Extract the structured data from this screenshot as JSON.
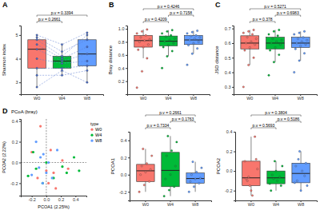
{
  "chart_data": [
    {
      "type": "box",
      "panel": "A",
      "ylabel": "Shannon index",
      "categories": [
        "W0",
        "W4",
        "W8"
      ],
      "colors": [
        "#F8766D",
        "#00BA38",
        "#619CFF"
      ],
      "ylim": [
        2.5,
        5.4
      ],
      "yticks": [
        3,
        4,
        5
      ],
      "line_style": "dashed",
      "boxes": [
        {
          "whislo": 2.8,
          "q1": 3.6,
          "med": 4.4,
          "q3": 4.8,
          "whishi": 5.0
        },
        {
          "whislo": 3.3,
          "q1": 3.6,
          "med": 3.9,
          "q3": 4.1,
          "whishi": 4.6
        },
        {
          "whislo": 3.0,
          "q1": 3.7,
          "med": 4.2,
          "q3": 4.8,
          "whishi": 5.1
        }
      ],
      "points": [
        [
          4.4,
          3.6,
          4.8,
          2.8,
          5.0,
          4.0,
          4.6,
          3.3,
          4.9
        ],
        [
          3.9,
          3.6,
          4.1,
          3.5,
          4.6,
          3.8,
          4.0,
          3.3,
          4.3
        ],
        [
          4.2,
          3.7,
          5.0,
          3.0,
          5.1,
          3.9,
          4.5,
          3.5,
          4.8
        ]
      ],
      "comparisons": [
        {
          "groups": [
            "W0",
            "W4"
          ],
          "label": "p.v = 0.2661"
        },
        {
          "groups": [
            "W0",
            "W8"
          ],
          "label": "p.v = 0.3394"
        }
      ]
    },
    {
      "type": "box",
      "panel": "B",
      "ylabel": "Bray distance",
      "categories": [
        "W0",
        "W4",
        "W8"
      ],
      "colors": [
        "#F8766D",
        "#00BA38",
        "#619CFF"
      ],
      "ylim": [
        0,
        1.05
      ],
      "yticks": [
        0.2,
        0.4,
        0.6,
        0.8,
        {
          "value": 1,
          "label": "1.0"
        }
      ],
      "boxes": [
        {
          "whislo": 0.55,
          "q1": 0.72,
          "med": 0.82,
          "q3": 0.9,
          "whishi": 0.99
        },
        {
          "whislo": 0.58,
          "q1": 0.74,
          "med": 0.81,
          "q3": 0.89,
          "whishi": 0.98
        },
        {
          "whislo": 0.62,
          "q1": 0.76,
          "med": 0.83,
          "q3": 0.9,
          "whishi": 0.97
        }
      ],
      "points": [
        [
          0.1,
          0.35,
          0.55,
          0.68,
          0.72,
          0.76,
          0.8,
          0.82,
          0.84,
          0.87,
          0.9,
          0.93,
          0.96,
          0.99
        ],
        [
          0.4,
          0.58,
          0.66,
          0.72,
          0.75,
          0.78,
          0.81,
          0.83,
          0.85,
          0.88,
          0.9,
          0.93,
          0.96,
          0.98
        ],
        [
          0.45,
          0.62,
          0.7,
          0.75,
          0.78,
          0.8,
          0.83,
          0.85,
          0.87,
          0.89,
          0.9,
          0.93,
          0.95,
          0.97
        ]
      ],
      "comparisons": [
        {
          "groups": [
            "W0",
            "W4"
          ],
          "label": "p.v = 0.4209"
        },
        {
          "groups": [
            "W4",
            "W8"
          ],
          "label": "p.v = 0.7158"
        },
        {
          "groups": [
            "W0",
            "W8"
          ],
          "label": "p.v = 0.4246"
        }
      ]
    },
    {
      "type": "box",
      "panel": "C",
      "ylabel": "JSD distance",
      "categories": [
        "W0",
        "W4",
        "W8"
      ],
      "colors": [
        "#F8766D",
        "#00BA38",
        "#619CFF"
      ],
      "ylim": [
        0.25,
        0.72
      ],
      "yticks": [
        0.3,
        0.4,
        0.5,
        0.6,
        0.7
      ],
      "boxes": [
        {
          "whislo": 0.45,
          "q1": 0.56,
          "med": 0.6,
          "q3": 0.65,
          "whishi": 0.69
        },
        {
          "whislo": 0.47,
          "q1": 0.56,
          "med": 0.6,
          "q3": 0.64,
          "whishi": 0.69
        },
        {
          "whislo": 0.48,
          "q1": 0.57,
          "med": 0.6,
          "q3": 0.64,
          "whishi": 0.68
        }
      ],
      "points": [
        [
          0.3,
          0.45,
          0.5,
          0.55,
          0.57,
          0.59,
          0.6,
          0.61,
          0.63,
          0.64,
          0.66,
          0.67,
          0.68,
          0.69
        ],
        [
          0.38,
          0.47,
          0.52,
          0.55,
          0.57,
          0.59,
          0.6,
          0.61,
          0.62,
          0.63,
          0.65,
          0.66,
          0.68,
          0.69
        ],
        [
          0.4,
          0.48,
          0.53,
          0.56,
          0.58,
          0.59,
          0.6,
          0.61,
          0.62,
          0.63,
          0.64,
          0.66,
          0.67,
          0.68
        ]
      ],
      "comparisons": [
        {
          "groups": [
            "W0",
            "W4"
          ],
          "label": "p.v = 0.378"
        },
        {
          "groups": [
            "W4",
            "W8"
          ],
          "label": "p.v = 0.6983"
        },
        {
          "groups": [
            "W0",
            "W8"
          ],
          "label": "p.v = 0.5271"
        }
      ]
    },
    {
      "type": "scatter",
      "panel": "D",
      "title": "PCoA (bray)",
      "xlabel": "PCOA1 (2.25%)",
      "ylabel": "PCOA2 (2.22%)",
      "legend": "right",
      "legend_title": "type",
      "xlim": [
        -0.35,
        0.55
      ],
      "xticks": [
        -0.2,
        {
          "value": 0,
          "label": "0.0"
        },
        0.2,
        0.4
      ],
      "ylim": [
        -0.32,
        0.42
      ],
      "yticks": [
        -0.2,
        {
          "value": 0,
          "label": "0.0"
        },
        0.2,
        0.4
      ],
      "reference_lines": {
        "x": [
          0
        ],
        "y": [
          0
        ]
      },
      "series": [
        {
          "name": "W0",
          "color": "#F8766D",
          "x": [
            -0.2,
            -0.12,
            -0.08,
            0.0,
            0.03,
            0.06,
            0.1,
            0.13,
            0.22,
            0.3
          ],
          "values": [
            0.1,
            -0.15,
            0.35,
            -0.08,
            -0.2,
            0.12,
            -0.1,
            -0.25,
            0.02,
            -0.06
          ]
        },
        {
          "name": "W4",
          "color": "#00BA38",
          "x": [
            -0.25,
            -0.18,
            -0.14,
            -0.05,
            0.0,
            0.1,
            0.22,
            0.28,
            0.38,
            0.45
          ],
          "values": [
            -0.13,
            0.1,
            -0.06,
            -0.2,
            0.0,
            -0.15,
            -0.04,
            -0.1,
            0.05,
            -0.08
          ]
        },
        {
          "name": "W8",
          "color": "#619CFF",
          "x": [
            -0.2,
            -0.14,
            -0.1,
            -0.08,
            -0.05,
            -0.04,
            0.0,
            0.03,
            0.08,
            0.15
          ],
          "values": [
            -0.12,
            0.2,
            -0.05,
            0.05,
            -0.2,
            0.08,
            -0.1,
            0.0,
            -0.15,
            0.12
          ]
        }
      ]
    },
    {
      "type": "box",
      "ylabel": "PCOA1",
      "categories": [
        "W0",
        "W4",
        "W8"
      ],
      "colors": [
        "#F8766D",
        "#00BA38",
        "#619CFF"
      ],
      "ylim": [
        -0.3,
        0.5
      ],
      "yticks": [
        -0.2,
        {
          "value": 0,
          "label": "0.0"
        },
        0.2,
        0.4
      ],
      "boxes": [
        {
          "whislo": -0.2,
          "q1": -0.08,
          "med": 0.045,
          "q3": 0.12,
          "whishi": 0.3
        },
        {
          "whislo": -0.25,
          "q1": -0.14,
          "med": 0.05,
          "q3": 0.26,
          "whishi": 0.45
        },
        {
          "whislo": -0.2,
          "q1": -0.1,
          "med": -0.045,
          "q3": 0.02,
          "whishi": 0.15
        }
      ],
      "points": [
        [
          -0.2,
          -0.12,
          -0.08,
          0.0,
          0.03,
          0.06,
          0.1,
          0.13,
          0.22,
          0.3
        ],
        [
          -0.25,
          -0.18,
          -0.14,
          -0.05,
          0.0,
          0.1,
          0.22,
          0.28,
          0.38,
          0.45
        ],
        [
          -0.2,
          -0.14,
          -0.1,
          -0.08,
          -0.05,
          -0.04,
          0.0,
          0.03,
          0.08,
          0.15
        ]
      ],
      "comparisons": [
        {
          "groups": [
            "W0",
            "W4"
          ],
          "label": "p.v = 0.7334"
        },
        {
          "groups": [
            "W4",
            "W8"
          ],
          "label": "p.v = 0.1763"
        },
        {
          "groups": [
            "W0",
            "W8"
          ],
          "label": "p.v = 0.2661"
        }
      ]
    },
    {
      "type": "box",
      "ylabel": "PCOA2",
      "categories": [
        "W0",
        "W4",
        "W8"
      ],
      "colors": [
        "#F8766D",
        "#00BA38",
        "#619CFF"
      ],
      "ylim": [
        -0.3,
        0.4
      ],
      "yticks": [
        -0.2,
        {
          "value": 0,
          "label": "0.0"
        },
        0.2,
        0.4
      ],
      "boxes": [
        {
          "whislo": -0.25,
          "q1": -0.15,
          "med": -0.07,
          "q3": 0.1,
          "whishi": 0.35
        },
        {
          "whislo": -0.2,
          "q1": -0.13,
          "med": -0.07,
          "q3": 0.0,
          "whishi": 0.1
        },
        {
          "whislo": -0.2,
          "q1": -0.12,
          "med": -0.025,
          "q3": 0.08,
          "whishi": 0.2
        }
      ],
      "points": [
        [
          0.1,
          -0.15,
          0.35,
          -0.08,
          -0.2,
          0.12,
          -0.1,
          -0.25,
          0.02,
          -0.06
        ],
        [
          -0.13,
          0.1,
          -0.06,
          -0.2,
          0.0,
          -0.15,
          -0.04,
          -0.1,
          0.05,
          -0.08
        ],
        [
          -0.12,
          0.2,
          -0.05,
          0.05,
          -0.2,
          0.08,
          -0.1,
          0.0,
          -0.15,
          0.12
        ]
      ],
      "comparisons": [
        {
          "groups": [
            "W0",
            "W4"
          ],
          "label": "p.v = 0.5693"
        },
        {
          "groups": [
            "W4",
            "W8"
          ],
          "label": "p.v = 0.5186"
        },
        {
          "groups": [
            "W0",
            "W8"
          ],
          "label": "p.v = 0.3804"
        }
      ]
    }
  ]
}
